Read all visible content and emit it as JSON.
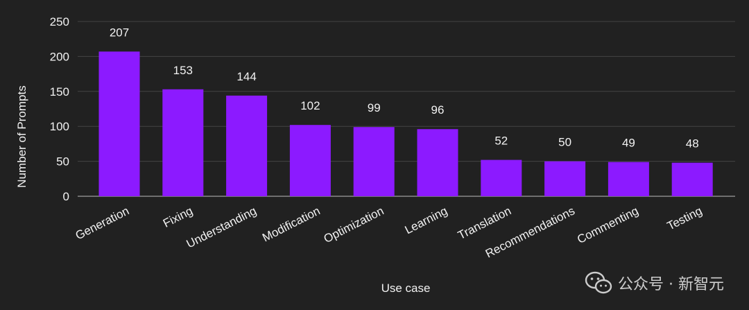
{
  "chart_data": {
    "type": "bar",
    "categories": [
      "Generation",
      "Fixing",
      "Understanding",
      "Modification",
      "Optimization",
      "Learning",
      "Translation",
      "Recommendations",
      "Commenting",
      "Testing"
    ],
    "values": [
      207,
      153,
      144,
      102,
      99,
      96,
      52,
      50,
      49,
      48
    ],
    "xlabel": "Use case",
    "ylabel": "Number of Prompts",
    "ylim": [
      0,
      250
    ],
    "yticks": [
      0,
      50,
      100,
      150,
      200,
      250
    ],
    "grid": true,
    "legend": "none",
    "data_labels": true
  },
  "colors": {
    "background": "#212121",
    "bar": "#8c1aff",
    "grid": "#444444",
    "text": "#f2f2f2"
  },
  "watermark": {
    "icon": "wechat-icon",
    "text": "公众号 · 新智元"
  }
}
